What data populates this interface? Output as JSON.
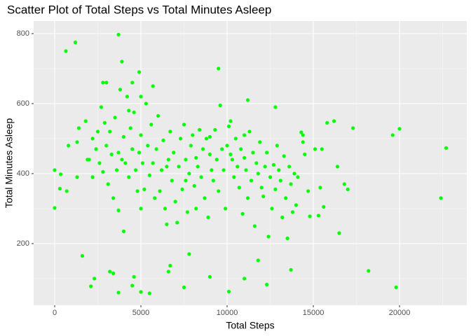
{
  "chart_data": {
    "type": "scatter",
    "title": "Scatter Plot of Total Steps vs Total Minutes Asleep",
    "x_label": "Total Steps",
    "y_label": "Total Minutes Asleep",
    "color": "#00ff00",
    "grid": true,
    "xlim": [
      -1220,
      23900
    ],
    "ylim": [
      24,
      836
    ],
    "xticks": [
      0,
      5000,
      10000,
      15000,
      20000
    ],
    "yticks": [
      200,
      400,
      600,
      800
    ],
    "x_minor_breaks": [
      2500,
      7500,
      12500,
      17500,
      22500
    ],
    "y_minor_breaks": [
      100,
      300,
      500,
      700
    ],
    "x": [
      0,
      0,
      300,
      350,
      650,
      700,
      800,
      1200,
      1300,
      1300,
      1400,
      1600,
      1800,
      1900,
      2100,
      2200,
      2300,
      2500,
      2700,
      2800,
      3200,
      3400,
      3700,
      3700,
      3700,
      3900,
      4000,
      4500,
      4600,
      4900,
      5000,
      5000,
      5500,
      5700,
      6600,
      6700,
      7500,
      7800,
      9000,
      9500,
      10100,
      11000,
      11200,
      11800,
      12300,
      12800,
      13700,
      15800,
      16200,
      16500,
      17300,
      18200,
      19600,
      19800,
      20000,
      22400,
      22700,
      16800,
      17000,
      16400,
      15500,
      15300,
      15600,
      14800,
      14300,
      14400,
      14400,
      14000,
      2000,
      2200,
      2400,
      2600,
      2800,
      2900,
      3000,
      3100,
      3200,
      3300,
      3400,
      3500,
      3600,
      3700,
      3800,
      3900,
      4000,
      4100,
      4200,
      4300,
      4400,
      4500,
      4600,
      4700,
      4800,
      4900,
      5000,
      5100,
      5200,
      5300,
      5400,
      5500,
      5600,
      5700,
      5800,
      5900,
      6000,
      6100,
      6200,
      6300,
      6400,
      6500,
      6600,
      6700,
      6800,
      6900,
      7000,
      7100,
      7200,
      7300,
      7400,
      7500,
      7600,
      7700,
      7800,
      7900,
      8000,
      8100,
      8200,
      8300,
      8400,
      8500,
      8600,
      8700,
      8800,
      8900,
      9000,
      9100,
      9200,
      9300,
      9400,
      9500,
      9600,
      9700,
      9800,
      9900,
      10000,
      10100,
      10200,
      10300,
      10400,
      10500,
      10600,
      10700,
      10800,
      10900,
      11000,
      11100,
      11200,
      11300,
      11400,
      11500,
      11600,
      11700,
      11800,
      11900,
      12000,
      12100,
      12200,
      12300,
      12400,
      12500,
      12600,
      12700,
      12800,
      12900,
      13000,
      13100,
      13200,
      13300,
      13400,
      13500,
      13600,
      13700,
      13800,
      13900,
      14100,
      14500,
      14700,
      15100,
      15400,
      4300,
      3000,
      4500,
      10200,
      11000,
      6500,
      9000,
      8200,
      5000,
      7600
    ],
    "values": [
      302,
      410,
      357,
      398,
      750,
      350,
      480,
      775,
      490,
      390,
      530,
      165,
      550,
      440,
      78,
      390,
      100,
      520,
      590,
      660,
      120,
      115,
      60,
      797,
      295,
      720,
      235,
      80,
      105,
      690,
      62,
      620,
      58,
      650,
      120,
      137,
      75,
      170,
      105,
      700,
      63,
      100,
      610,
      152,
      83,
      590,
      125,
      545,
      550,
      230,
      530,
      122,
      510,
      75,
      528,
      330,
      473,
      370,
      355,
      420,
      470,
      280,
      305,
      278,
      518,
      510,
      490,
      310,
      440,
      500,
      470,
      430,
      405,
      545,
      480,
      370,
      520,
      455,
      330,
      560,
      410,
      460,
      640,
      440,
      505,
      430,
      620,
      390,
      530,
      470,
      575,
      410,
      350,
      460,
      510,
      430,
      355,
      600,
      480,
      395,
      540,
      430,
      330,
      470,
      565,
      350,
      410,
      495,
      300,
      255,
      440,
      520,
      380,
      460,
      320,
      260,
      420,
      500,
      355,
      540,
      440,
      290,
      400,
      480,
      510,
      365,
      445,
      420,
      525,
      390,
      470,
      330,
      500,
      275,
      455,
      410,
      380,
      525,
      440,
      350,
      595,
      470,
      410,
      300,
      480,
      535,
      455,
      440,
      390,
      500,
      420,
      360,
      470,
      285,
      445,
      410,
      330,
      520,
      380,
      460,
      250,
      430,
      400,
      490,
      360,
      335,
      420,
      460,
      220,
      390,
      300,
      425,
      355,
      480,
      410,
      380,
      275,
      450,
      330,
      215,
      420,
      370,
      290,
      400,
      390,
      455,
      350,
      470,
      360,
      580,
      660,
      660,
      550,
      510,
      420,
      505,
      300,
      300,
      380
    ]
  }
}
